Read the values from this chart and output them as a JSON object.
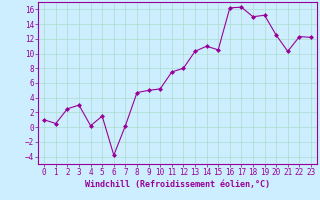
{
  "x": [
    0,
    1,
    2,
    3,
    4,
    5,
    6,
    7,
    8,
    9,
    10,
    11,
    12,
    13,
    14,
    15,
    16,
    17,
    18,
    19,
    20,
    21,
    22,
    23
  ],
  "y": [
    1,
    0.5,
    2.5,
    3,
    0.2,
    1.5,
    -3.8,
    0.2,
    4.7,
    5.0,
    5.2,
    7.5,
    8.0,
    10.3,
    11.0,
    10.5,
    16.2,
    16.3,
    15.0,
    15.2,
    12.5,
    10.3,
    12.3,
    12.2
  ],
  "line_color": "#990099",
  "marker": "D",
  "markersize": 2.0,
  "linewidth": 0.8,
  "bg_color": "#cceeff",
  "grid_color": "#aaddcc",
  "xlabel": "Windchill (Refroidissement éolien,°C)",
  "xlabel_color": "#990099",
  "xlabel_fontsize": 6.0,
  "tick_color": "#990099",
  "tick_fontsize": 5.5,
  "ylim": [
    -5,
    17
  ],
  "xlim": [
    -0.5,
    23.5
  ],
  "yticks": [
    -4,
    -2,
    0,
    2,
    4,
    6,
    8,
    10,
    12,
    14,
    16
  ],
  "xticks": [
    0,
    1,
    2,
    3,
    4,
    5,
    6,
    7,
    8,
    9,
    10,
    11,
    12,
    13,
    14,
    15,
    16,
    17,
    18,
    19,
    20,
    21,
    22,
    23
  ]
}
